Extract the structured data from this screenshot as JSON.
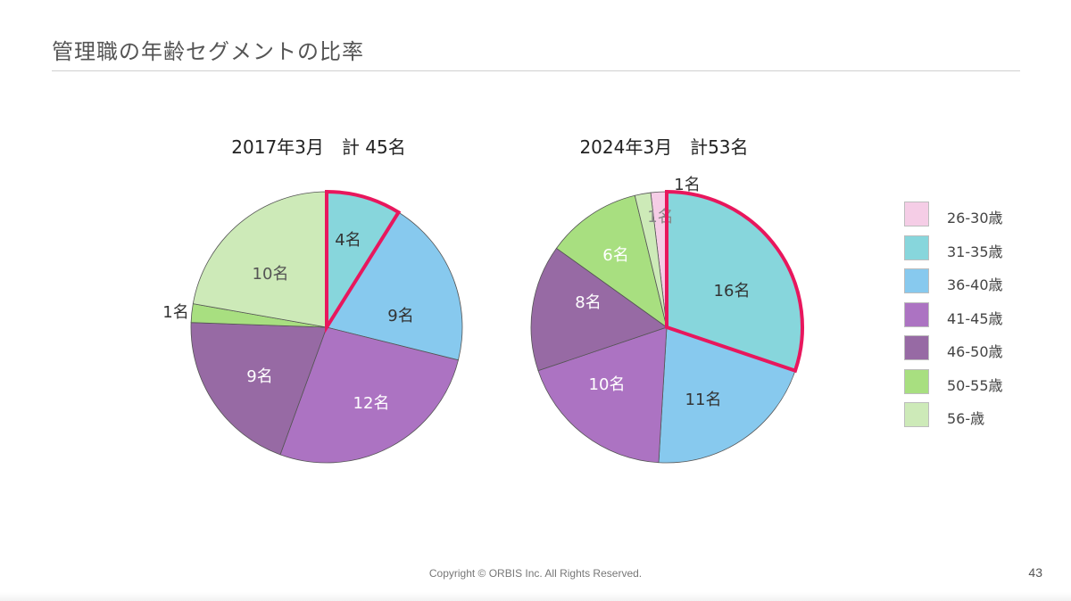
{
  "page": {
    "title": "管理職の年齢セグメントの比率",
    "footer": "Copyright © ORBIS Inc. All Rights Reserved.",
    "page_number": "43"
  },
  "legend": [
    {
      "label": "26-30歳",
      "color": "#f5cde6"
    },
    {
      "label": "31-35歳",
      "color": "#87d6dc"
    },
    {
      "label": "36-40歳",
      "color": "#87c9ee"
    },
    {
      "label": "41-45歳",
      "color": "#ac73c2"
    },
    {
      "label": "46-50歳",
      "color": "#976aa4"
    },
    {
      "label": "50-55歳",
      "color": "#a8df80"
    },
    {
      "label": "56-歳",
      "color": "#cdeab8"
    }
  ],
  "highlight_color": "#e8175d",
  "chart_data": [
    {
      "type": "pie",
      "title": "2017年3月　計 45名",
      "unit": "名",
      "highlighted_category": "31-35歳",
      "slices": [
        {
          "category": "31-35歳",
          "value": 4,
          "label": "4名"
        },
        {
          "category": "36-40歳",
          "value": 9,
          "label": "9名"
        },
        {
          "category": "41-45歳",
          "value": 12,
          "label": "12名"
        },
        {
          "category": "46-50歳",
          "value": 9,
          "label": "9名"
        },
        {
          "category": "50-55歳",
          "value": 1,
          "label": "1名"
        },
        {
          "category": "56-歳",
          "value": 10,
          "label": "10名"
        }
      ]
    },
    {
      "type": "pie",
      "title": "2024年3月　計53名",
      "unit": "名",
      "highlighted_category": "31-35歳",
      "slices": [
        {
          "category": "26-30歳",
          "value": 1,
          "label": "1名"
        },
        {
          "category": "31-35歳",
          "value": 16,
          "label": "16名"
        },
        {
          "category": "36-40歳",
          "value": 11,
          "label": "11名"
        },
        {
          "category": "41-45歳",
          "value": 10,
          "label": "10名"
        },
        {
          "category": "46-50歳",
          "value": 8,
          "label": "8名"
        },
        {
          "category": "50-55歳",
          "value": 6,
          "label": "6名"
        },
        {
          "category": "56-歳",
          "value": 1,
          "label": "1名"
        }
      ]
    }
  ]
}
